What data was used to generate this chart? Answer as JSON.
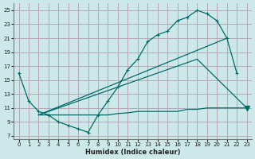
{
  "xlabel": "Humidex (Indice chaleur)",
  "bg_color": "#cde8e8",
  "grid_color": "#b8a8b8",
  "line_color": "#006b6b",
  "xlim": [
    -0.5,
    23.5
  ],
  "ylim": [
    6.5,
    26
  ],
  "xticks": [
    0,
    1,
    2,
    3,
    4,
    5,
    6,
    7,
    8,
    9,
    10,
    11,
    12,
    13,
    14,
    15,
    16,
    17,
    18,
    19,
    20,
    21,
    22,
    23
  ],
  "yticks": [
    7,
    9,
    11,
    13,
    15,
    17,
    19,
    21,
    23,
    25
  ],
  "line1_x": [
    0,
    1,
    2,
    3,
    4,
    5,
    6,
    7,
    8,
    9,
    10,
    11,
    12,
    13,
    14,
    15,
    16,
    17,
    18,
    19,
    20,
    21,
    22
  ],
  "line1_y": [
    16,
    12,
    10.5,
    10,
    9,
    8.5,
    8,
    7.5,
    10,
    12,
    14,
    16.5,
    18,
    20.5,
    21.5,
    22,
    23.5,
    24,
    25,
    24.5,
    23.5,
    21,
    16
  ],
  "line2_x": [
    2,
    3,
    4,
    5,
    6,
    7,
    8,
    9,
    10,
    11,
    12,
    13,
    14,
    15,
    16,
    17,
    18,
    19,
    20,
    21,
    22,
    23
  ],
  "line2_y": [
    10,
    10,
    10,
    10,
    10,
    10,
    10,
    10,
    10.2,
    10.3,
    10.5,
    10.5,
    10.5,
    10.5,
    10.5,
    10.8,
    10.8,
    11,
    11,
    11,
    11,
    11
  ],
  "line3_x": [
    2,
    21
  ],
  "line3_y": [
    10,
    21
  ],
  "line4_x": [
    2,
    18,
    23
  ],
  "line4_y": [
    10,
    18,
    11
  ],
  "marker_line1_x": [
    0,
    1,
    2,
    3,
    4,
    5,
    6,
    7,
    8,
    9,
    10,
    11,
    12,
    13,
    14,
    15,
    16,
    17,
    18,
    19,
    20,
    21,
    22
  ],
  "marker_line1_y": [
    16,
    12,
    10.5,
    10,
    9,
    8.5,
    8,
    7.5,
    10,
    12,
    14,
    16.5,
    18,
    20.5,
    21.5,
    22,
    23.5,
    24,
    25,
    24.5,
    23.5,
    21,
    16
  ],
  "triangle_x": 23,
  "triangle_y": 11
}
